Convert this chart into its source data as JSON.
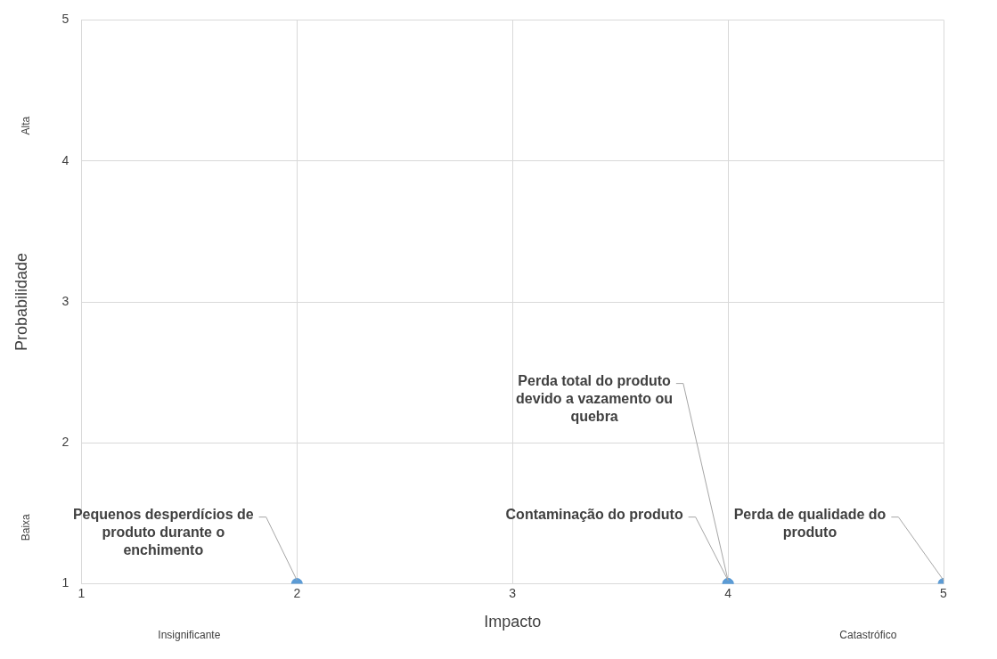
{
  "chart_data": {
    "type": "scatter",
    "xlabel": "Impacto",
    "ylabel": "Probabilidade",
    "x": [
      2,
      4,
      4,
      5
    ],
    "values": [
      1,
      1,
      1,
      1
    ],
    "color": "#5b9bd5",
    "xlim": [
      1,
      5
    ],
    "xticks": [
      1,
      2,
      3,
      4,
      5
    ],
    "ylim": [
      1,
      5
    ],
    "yticks": [
      1,
      2,
      3,
      4,
      5
    ],
    "grid": true,
    "legend": false,
    "marker": "circle",
    "annotations": [
      {
        "text": "Pequenos desperdícios de produto durante o enchimento",
        "x": 2,
        "y": 1
      },
      {
        "text": "Contaminação do produto",
        "x": 4,
        "y": 1
      },
      {
        "text": "Perda total do produto devido a vazamento ou quebra",
        "x": 4,
        "y": 1
      },
      {
        "text": "Perda de qualidade do produto",
        "x": 5,
        "y": 1
      },
      "Alta",
      "Baixa",
      "Insignificante",
      "Catastrófico"
    ]
  }
}
